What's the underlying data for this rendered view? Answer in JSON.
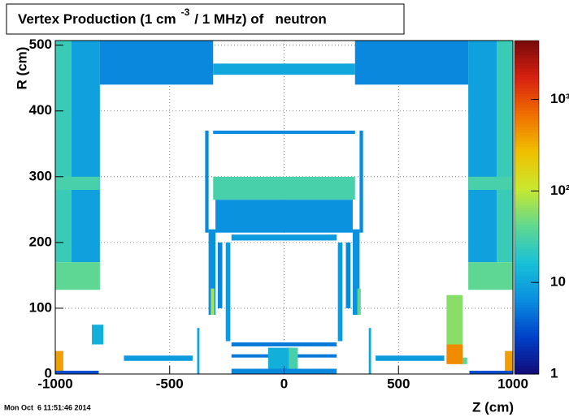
{
  "chart_data": {
    "type": "heatmap",
    "title": {
      "text": "Vertex Production (1 cm",
      "superscript": "-3",
      "rest": "/ 1 MHz) of   neutron"
    },
    "x_label": "Z (cm)",
    "y_label": "R (cm)",
    "timestamp": "Mon Oct  6 11:51:46 2014",
    "xlim": [
      -1000,
      1000
    ],
    "xticks": [
      -1000,
      -500,
      0,
      500,
      1000
    ],
    "ylim": [
      0,
      507
    ],
    "yticks": [
      0,
      100,
      200,
      300,
      400,
      500
    ],
    "zlim": [
      1,
      4400
    ],
    "zlog": true,
    "zticks": [
      1,
      10,
      {
        "value": 100,
        "label": "10²"
      },
      {
        "value": 1000,
        "label": "10³"
      }
    ],
    "grid": true,
    "palette": [
      "#120a78",
      "#0040c8",
      "#0a8ee0",
      "#18c0d8",
      "#60d890",
      "#c8e830",
      "#f0c000",
      "#f07000",
      "#d82010",
      "#780a0a"
    ],
    "cells": [
      [
        -1000,
        -930,
        170,
        507,
        25
      ],
      [
        -930,
        -805,
        170,
        507,
        9
      ],
      [
        -1000,
        -805,
        128,
        170,
        40
      ],
      [
        -1000,
        -805,
        280,
        300,
        30
      ],
      [
        -805,
        -310,
        440,
        507,
        6
      ],
      [
        -310,
        310,
        455,
        472,
        10
      ],
      [
        310,
        805,
        440,
        507,
        6
      ],
      [
        805,
        930,
        170,
        507,
        9
      ],
      [
        930,
        1000,
        170,
        507,
        25
      ],
      [
        805,
        1000,
        128,
        170,
        40
      ],
      [
        805,
        1000,
        280,
        300,
        30
      ],
      [
        -310,
        310,
        365,
        370,
        6
      ],
      [
        -345,
        -330,
        215,
        370,
        6
      ],
      [
        330,
        345,
        215,
        370,
        6
      ],
      [
        -310,
        310,
        265,
        300,
        30
      ],
      [
        -300,
        300,
        215,
        265,
        7
      ],
      [
        -230,
        230,
        203,
        212,
        8
      ],
      [
        -255,
        -235,
        50,
        200,
        8
      ],
      [
        235,
        255,
        50,
        200,
        8
      ],
      [
        -290,
        -270,
        100,
        200,
        6
      ],
      [
        270,
        290,
        100,
        200,
        6
      ],
      [
        -330,
        -300,
        90,
        220,
        7
      ],
      [
        -320,
        -305,
        90,
        130,
        80
      ],
      [
        300,
        330,
        90,
        220,
        7
      ],
      [
        320,
        335,
        90,
        130,
        40
      ],
      [
        -230,
        230,
        42,
        48,
        5
      ],
      [
        -230,
        230,
        25,
        30,
        5
      ],
      [
        -70,
        40,
        0,
        40,
        12
      ],
      [
        20,
        60,
        0,
        40,
        30
      ],
      [
        -380,
        -370,
        0,
        70,
        10
      ],
      [
        370,
        380,
        0,
        70,
        10
      ],
      [
        -230,
        230,
        0,
        8,
        6
      ],
      [
        -700,
        -400,
        20,
        28,
        8
      ],
      [
        400,
        700,
        20,
        28,
        8
      ],
      [
        -840,
        -790,
        45,
        75,
        12
      ],
      [
        -1000,
        -965,
        5,
        35,
        400
      ],
      [
        965,
        1000,
        5,
        35,
        400
      ],
      [
        710,
        780,
        45,
        120,
        60
      ],
      [
        710,
        780,
        15,
        45,
        500
      ],
      [
        780,
        800,
        15,
        25,
        40
      ],
      [
        -1000,
        -810,
        0,
        5,
        3
      ],
      [
        810,
        1000,
        0,
        5,
        3
      ]
    ]
  }
}
